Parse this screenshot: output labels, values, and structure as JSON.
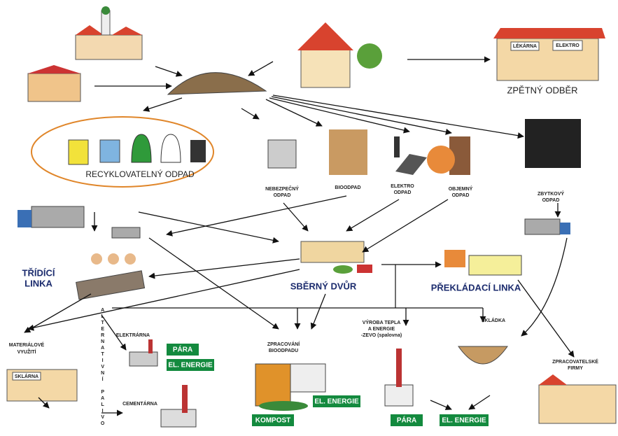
{
  "header": {
    "return": "ZPĚTNÝ ODBĚR",
    "shops": [
      "LÉKÁRNA",
      "ELEKTRO"
    ]
  },
  "recyclable": "RECYKLOVATELNÝ ODPAD",
  "waste_types": [
    {
      "lines": [
        "NEBEZPEČNÝ",
        "ODPAD"
      ]
    },
    {
      "lines": [
        "BIOODPAD"
      ]
    },
    {
      "lines": [
        "ELEKTRO",
        "ODPAD"
      ]
    },
    {
      "lines": [
        "OBJEMNÝ",
        "ODPAD"
      ]
    },
    {
      "lines": [
        "ZBYTKOVÝ",
        "ODPAD"
      ]
    }
  ],
  "facilities": {
    "sorting": [
      "TŘÍDÍCÍ",
      "LINKA"
    ],
    "collection": "SBĚRNÝ DVŮR",
    "transfer": "PŘEKLÁDACÍ LINKA"
  },
  "material": {
    "lines": [
      "MATERIÁLOVÉ",
      "VYUŽITÍ"
    ],
    "shop": "SKLÁRNA"
  },
  "fuel": "ALTERNATIVNÍ PALIVO",
  "power_plant": {
    "label": "ELEKTRÁRNA",
    "outputs": [
      "PÁRA",
      "EL. ENERGIE"
    ]
  },
  "cement": "CEMENTÁRNA",
  "bio": {
    "lines": [
      "ZPRACOVÁNÍ",
      "BIOODPADU"
    ],
    "outputs": [
      "EL. ENERGIE",
      "KOMPOST"
    ]
  },
  "zevo": {
    "lines": [
      "VÝROBA TEPLA",
      "A ENERGIE",
      "-ZEVO (spalovna)"
    ],
    "outputs": [
      "PÁRA",
      "EL. ENERGIE"
    ]
  },
  "landfill": "SKLÁDKA",
  "processors": [
    "ZPRACOVATELSKÉ",
    "FIRMY"
  ]
}
